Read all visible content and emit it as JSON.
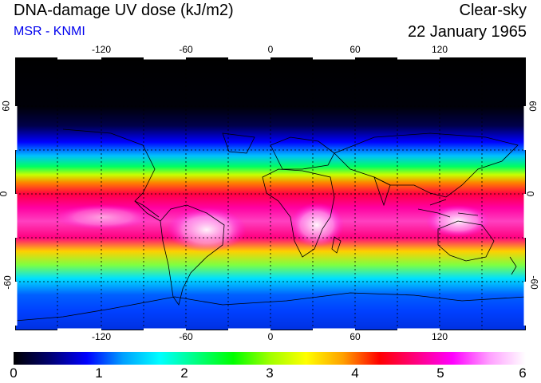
{
  "header": {
    "title": "DNA-damage UV dose (kJ/m2)",
    "subtitle": "MSR - KNMI",
    "condition": "Clear-sky",
    "date": "22 January 1965"
  },
  "map": {
    "projection": "equirectangular",
    "lon_ticks": [
      "-120",
      "-60",
      "0",
      "60",
      "120"
    ],
    "lat_ticks": [
      "60",
      "0",
      "-60"
    ],
    "lat_ticks_right": [
      "60",
      "0",
      "-60"
    ],
    "gridlines": "dotted"
  },
  "colorbar": {
    "tick_labels": [
      "0",
      "1",
      "2",
      "3",
      "4",
      "5",
      "6"
    ],
    "colors": [
      "#000000",
      "#000070",
      "#0000ff",
      "#00a0ff",
      "#00ffff",
      "#00ff80",
      "#00ff00",
      "#a0ff00",
      "#ffff00",
      "#ffa000",
      "#ff0000",
      "#ff0080",
      "#ff00ff",
      "#ffa0ff",
      "#ffffff"
    ]
  }
}
